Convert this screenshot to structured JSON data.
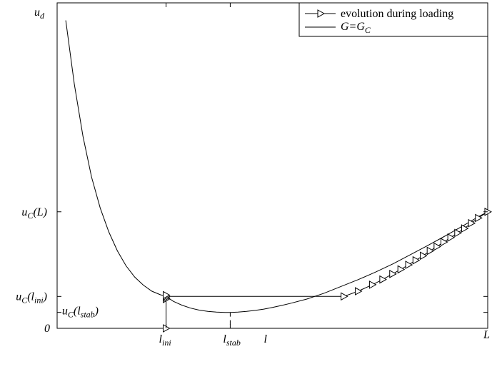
{
  "chart_data": {
    "type": "line",
    "xlim": [
      0,
      100
    ],
    "ylim": [
      0,
      100
    ],
    "grid": false,
    "legend_position": "top-right",
    "legend": [
      {
        "label": "evolution during loading",
        "marker": "triangle-right"
      },
      {
        "label_main": "G=G",
        "label_sub": "C",
        "marker": "line"
      }
    ],
    "y_ticks": [
      {
        "value": 100,
        "main": "u",
        "sub": "d",
        "suffix": "",
        "sub2": "",
        "suffix2": ""
      },
      {
        "value": 35.8,
        "main": "u",
        "sub": "C",
        "suffix": "(L)",
        "sub2": "",
        "suffix2": ""
      },
      {
        "value": 9.8,
        "main": "u",
        "sub": "C",
        "suffix": "(l",
        "sub2": "ini",
        "suffix2": ")"
      },
      {
        "value": 4.9,
        "main": "u",
        "sub": "C",
        "suffix": "(l",
        "sub2": "stab",
        "suffix2": ")"
      },
      {
        "value": 0,
        "main": "0",
        "sub": "",
        "suffix": "",
        "sub2": "",
        "suffix2": ""
      }
    ],
    "x_ticks": [
      {
        "value": 25.3,
        "main": "l",
        "sub": "ini"
      },
      {
        "value": 40.2,
        "main": "l",
        "sub": "stab"
      },
      {
        "value": 100,
        "main": "L",
        "sub": ""
      }
    ],
    "x_label": {
      "value": 48,
      "main": "l"
    },
    "l_stab_marker": {
      "x": 40.2,
      "y": 4.9
    },
    "series": [
      {
        "name_main": "G=G",
        "name_sub": "C",
        "style": "solid",
        "x": [
          2,
          4,
          6,
          8,
          10,
          12,
          14,
          16,
          18,
          20,
          22,
          24,
          25.3,
          27,
          29,
          31,
          33,
          35,
          37,
          39,
          40.2,
          42,
          44,
          46,
          48,
          50,
          52,
          54,
          58,
          62,
          66,
          70,
          74,
          78,
          82,
          86,
          90,
          94,
          98,
          100
        ],
        "y": [
          94.6,
          75,
          59,
          46.5,
          37,
          29.6,
          23.8,
          19.2,
          15.8,
          13.3,
          11.4,
          10.3,
          9.8,
          8.3,
          7.1,
          6.2,
          5.6,
          5.2,
          5.0,
          4.9,
          4.9,
          5.0,
          5.2,
          5.5,
          5.9,
          6.4,
          7.0,
          7.6,
          9.0,
          10.8,
          12.9,
          15.0,
          17.3,
          19.8,
          22.6,
          25.4,
          28.3,
          31.3,
          34.4,
          35.8
        ]
      },
      {
        "name": "evolution during loading",
        "style": "solid-triangle",
        "path_x": [
          25.3,
          25.3,
          25.3,
          66.6
        ],
        "path_y": [
          0,
          9.8,
          9.8,
          9.8
        ],
        "marker_x": [
          25.3,
          25.3,
          25.3,
          25.3,
          25.3,
          66.6,
          69.9,
          73.2,
          75.6,
          77.9,
          79.8,
          81.6,
          83.3,
          85.0,
          86.6,
          88.2,
          89.8,
          91.4,
          93.0,
          94.6,
          96.2,
          97.8,
          100
        ],
        "marker_y": [
          0,
          9.0,
          9.4,
          9.8,
          10.2,
          9.8,
          11.4,
          13.4,
          15.0,
          16.7,
          18.1,
          19.5,
          20.9,
          22.3,
          23.8,
          25.1,
          26.5,
          27.9,
          29.3,
          30.7,
          32.3,
          33.9,
          35.8
        ]
      }
    ]
  }
}
